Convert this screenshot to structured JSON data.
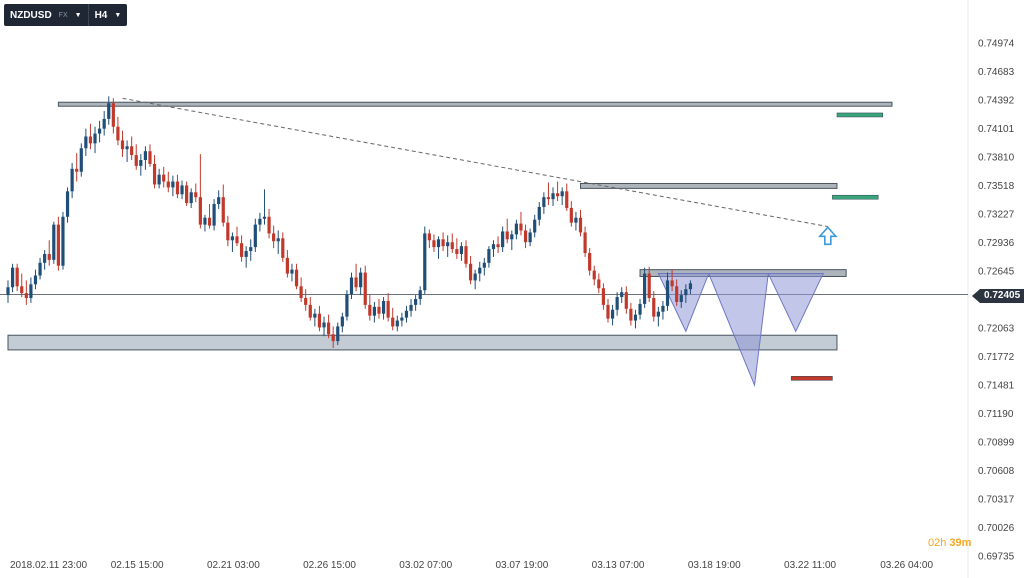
{
  "toolbar": {
    "symbol": "NZDUSD",
    "market": "FX",
    "timeframe": "H4"
  },
  "timer": {
    "hours": "02h",
    "minutes": "39m"
  },
  "current_price": "0.72405",
  "chart_data": {
    "type": "candlestick",
    "title": "",
    "xlabel": "",
    "ylabel": "",
    "ylim": [
      0.69735,
      0.75265
    ],
    "y_ticks": [
      "0.74974",
      "0.74683",
      "0.74392",
      "0.74101",
      "0.73810",
      "0.73518",
      "0.73227",
      "0.72936",
      "0.72645",
      "0.72063",
      "0.71772",
      "0.71481",
      "0.71190",
      "0.70899",
      "0.70608",
      "0.70317",
      "0.70026",
      "0.69735"
    ],
    "x_ticks": [
      {
        "label": "2018.02.11  23:00",
        "i": 0
      },
      {
        "label": "02.15  15:00",
        "i": 22
      },
      {
        "label": "02.21  03:00",
        "i": 43
      },
      {
        "label": "02.26  15:00",
        "i": 64
      },
      {
        "label": "03.02  07:00",
        "i": 85
      },
      {
        "label": "03.07  19:00",
        "i": 106
      },
      {
        "label": "03.13  07:00",
        "i": 127
      },
      {
        "label": "03.18  19:00",
        "i": 148
      },
      {
        "label": "03.22  11:00",
        "i": 169
      },
      {
        "label": "03.26  04:00",
        "i": 190
      }
    ],
    "colors": {
      "up": "#1f4e79",
      "down": "#c0392b",
      "support": "#b8c2cc",
      "pattern": "#8f98d6",
      "target_green": "#3aa57a",
      "stop_red": "#c0392b",
      "arrow": "#3a9ad9"
    },
    "levels": [
      {
        "name": "resistance-top",
        "from": 0.7437,
        "to": 0.7433,
        "i0": 11,
        "i1": 193
      },
      {
        "name": "resistance-mid",
        "from": 0.7354,
        "to": 0.7349,
        "i0": 125,
        "i1": 181
      },
      {
        "name": "neckline",
        "from": 0.7266,
        "to": 0.7259,
        "i0": 138,
        "i1": 183
      },
      {
        "name": "support-zone",
        "from": 0.7199,
        "to": 0.7184,
        "i0": 0,
        "i1": 181
      }
    ],
    "current_price_value": 0.72405,
    "trendline": [
      {
        "i": 25,
        "p": 0.7441
      },
      {
        "i": 179,
        "p": 0.731
      }
    ],
    "targets": [
      {
        "kind": "take-profit-1",
        "price": 0.7424,
        "i0": 181,
        "i1": 191
      },
      {
        "kind": "take-profit-2",
        "price": 0.734,
        "i0": 180,
        "i1": 190
      },
      {
        "kind": "stop-loss",
        "price": 0.7155,
        "i0": 171,
        "i1": 180
      }
    ],
    "pattern": [
      [
        {
          "i": 142,
          "p": 0.7262
        },
        {
          "i": 148,
          "p": 0.7203
        },
        {
          "i": 153,
          "p": 0.7262
        }
      ],
      [
        {
          "i": 153,
          "p": 0.7262
        },
        {
          "i": 163,
          "p": 0.7148
        },
        {
          "i": 166,
          "p": 0.7262
        }
      ],
      [
        {
          "i": 166,
          "p": 0.7262
        },
        {
          "i": 172,
          "p": 0.7203
        },
        {
          "i": 178,
          "p": 0.7262
        }
      ]
    ],
    "arrow": {
      "i": 179,
      "p": 0.73
    },
    "ohlc": [
      [
        0.724,
        0.7255,
        0.7232,
        0.7248
      ],
      [
        0.7248,
        0.7272,
        0.7243,
        0.7268
      ],
      [
        0.7268,
        0.7272,
        0.7244,
        0.7249
      ],
      [
        0.7249,
        0.7262,
        0.7238,
        0.7242
      ],
      [
        0.7242,
        0.7255,
        0.723,
        0.7237
      ],
      [
        0.7237,
        0.7258,
        0.7232,
        0.7251
      ],
      [
        0.7251,
        0.7266,
        0.7246,
        0.726
      ],
      [
        0.726,
        0.7278,
        0.7256,
        0.7273
      ],
      [
        0.7273,
        0.7286,
        0.7266,
        0.7282
      ],
      [
        0.7282,
        0.7296,
        0.727,
        0.7276
      ],
      [
        0.7276,
        0.7315,
        0.7272,
        0.7312
      ],
      [
        0.7312,
        0.732,
        0.7265,
        0.727
      ],
      [
        0.727,
        0.7325,
        0.7266,
        0.732
      ],
      [
        0.732,
        0.735,
        0.7314,
        0.7346
      ],
      [
        0.7346,
        0.7375,
        0.7339,
        0.7369
      ],
      [
        0.7369,
        0.7385,
        0.7356,
        0.7366
      ],
      [
        0.7366,
        0.7395,
        0.7361,
        0.739
      ],
      [
        0.739,
        0.741,
        0.7382,
        0.7402
      ],
      [
        0.7402,
        0.7415,
        0.7389,
        0.7395
      ],
      [
        0.7395,
        0.7412,
        0.7385,
        0.7405
      ],
      [
        0.7405,
        0.7418,
        0.7396,
        0.741
      ],
      [
        0.741,
        0.7428,
        0.7403,
        0.742
      ],
      [
        0.742,
        0.7443,
        0.7414,
        0.7436
      ],
      [
        0.7436,
        0.7441,
        0.7405,
        0.7412
      ],
      [
        0.7412,
        0.7422,
        0.7393,
        0.7398
      ],
      [
        0.7398,
        0.7408,
        0.7381,
        0.7389
      ],
      [
        0.7389,
        0.7398,
        0.7376,
        0.7392
      ],
      [
        0.7392,
        0.7402,
        0.7378,
        0.7383
      ],
      [
        0.7383,
        0.7394,
        0.7368,
        0.7372
      ],
      [
        0.7372,
        0.7384,
        0.7362,
        0.7378
      ],
      [
        0.7378,
        0.7392,
        0.7368,
        0.7387
      ],
      [
        0.7387,
        0.7394,
        0.7371,
        0.7374
      ],
      [
        0.7374,
        0.7383,
        0.7349,
        0.7353
      ],
      [
        0.7353,
        0.7369,
        0.7349,
        0.7363
      ],
      [
        0.7363,
        0.7371,
        0.735,
        0.7356
      ],
      [
        0.7356,
        0.7366,
        0.7345,
        0.735
      ],
      [
        0.735,
        0.7362,
        0.7341,
        0.7356
      ],
      [
        0.7356,
        0.7363,
        0.7339,
        0.7343
      ],
      [
        0.7343,
        0.7357,
        0.7338,
        0.7352
      ],
      [
        0.7352,
        0.7356,
        0.7331,
        0.7334
      ],
      [
        0.7334,
        0.7349,
        0.7329,
        0.7345
      ],
      [
        0.7345,
        0.7354,
        0.7335,
        0.734
      ],
      [
        0.734,
        0.7384,
        0.7308,
        0.7312
      ],
      [
        0.7312,
        0.7322,
        0.7305,
        0.7319
      ],
      [
        0.7319,
        0.7333,
        0.7308,
        0.7311
      ],
      [
        0.7311,
        0.7338,
        0.7306,
        0.7333
      ],
      [
        0.7333,
        0.7347,
        0.7328,
        0.734
      ],
      [
        0.734,
        0.7353,
        0.731,
        0.7314
      ],
      [
        0.7314,
        0.7321,
        0.729,
        0.7296
      ],
      [
        0.7296,
        0.7304,
        0.7284,
        0.73
      ],
      [
        0.73,
        0.731,
        0.729,
        0.7293
      ],
      [
        0.7293,
        0.7301,
        0.7274,
        0.7279
      ],
      [
        0.7279,
        0.729,
        0.7268,
        0.7285
      ],
      [
        0.7285,
        0.7297,
        0.7275,
        0.7289
      ],
      [
        0.7289,
        0.7318,
        0.7284,
        0.7312
      ],
      [
        0.7312,
        0.7324,
        0.7305,
        0.7318
      ],
      [
        0.7318,
        0.7348,
        0.7312,
        0.732
      ],
      [
        0.732,
        0.7328,
        0.7298,
        0.7303
      ],
      [
        0.7303,
        0.7311,
        0.7288,
        0.7295
      ],
      [
        0.7295,
        0.7306,
        0.7282,
        0.7298
      ],
      [
        0.7298,
        0.7304,
        0.7274,
        0.7278
      ],
      [
        0.7278,
        0.7286,
        0.7258,
        0.7262
      ],
      [
        0.7262,
        0.7272,
        0.7254,
        0.7266
      ],
      [
        0.7266,
        0.7272,
        0.7246,
        0.7249
      ],
      [
        0.7249,
        0.7258,
        0.7233,
        0.7237
      ],
      [
        0.7237,
        0.7246,
        0.7224,
        0.723
      ],
      [
        0.723,
        0.7238,
        0.7214,
        0.7217
      ],
      [
        0.7217,
        0.7226,
        0.7208,
        0.7221
      ],
      [
        0.7221,
        0.7229,
        0.7203,
        0.7207
      ],
      [
        0.7207,
        0.7218,
        0.7198,
        0.7212
      ],
      [
        0.7212,
        0.722,
        0.7196,
        0.72
      ],
      [
        0.72,
        0.7208,
        0.7186,
        0.7193
      ],
      [
        0.7193,
        0.7212,
        0.7189,
        0.7208
      ],
      [
        0.7208,
        0.7222,
        0.7202,
        0.7218
      ],
      [
        0.7218,
        0.7245,
        0.7214,
        0.7241
      ],
      [
        0.7241,
        0.7263,
        0.7236,
        0.7258
      ],
      [
        0.7258,
        0.7272,
        0.7244,
        0.7248
      ],
      [
        0.7248,
        0.7268,
        0.724,
        0.7263
      ],
      [
        0.7263,
        0.727,
        0.7226,
        0.723
      ],
      [
        0.723,
        0.724,
        0.7214,
        0.7219
      ],
      [
        0.7219,
        0.7233,
        0.7212,
        0.7228
      ],
      [
        0.7228,
        0.7236,
        0.7216,
        0.7221
      ],
      [
        0.7221,
        0.7238,
        0.7215,
        0.7234
      ],
      [
        0.7234,
        0.7242,
        0.7213,
        0.7217
      ],
      [
        0.7217,
        0.7227,
        0.7204,
        0.7208
      ],
      [
        0.7208,
        0.7219,
        0.7203,
        0.7214
      ],
      [
        0.7214,
        0.7222,
        0.7208,
        0.7217
      ],
      [
        0.7217,
        0.7229,
        0.7212,
        0.7224
      ],
      [
        0.7224,
        0.7236,
        0.7218,
        0.723
      ],
      [
        0.723,
        0.724,
        0.7224,
        0.7236
      ],
      [
        0.7236,
        0.7249,
        0.723,
        0.7245
      ],
      [
        0.7245,
        0.731,
        0.7241,
        0.7303
      ],
      [
        0.7303,
        0.7307,
        0.7288,
        0.7296
      ],
      [
        0.7296,
        0.7302,
        0.7284,
        0.7289
      ],
      [
        0.7289,
        0.73,
        0.7277,
        0.7297
      ],
      [
        0.7297,
        0.7304,
        0.7285,
        0.729
      ],
      [
        0.729,
        0.7301,
        0.7279,
        0.7294
      ],
      [
        0.7294,
        0.7303,
        0.7283,
        0.7287
      ],
      [
        0.7287,
        0.7298,
        0.7277,
        0.7282
      ],
      [
        0.7282,
        0.7294,
        0.7275,
        0.729
      ],
      [
        0.729,
        0.7296,
        0.7268,
        0.7272
      ],
      [
        0.7272,
        0.728,
        0.7251,
        0.7255
      ],
      [
        0.7255,
        0.7266,
        0.7246,
        0.7262
      ],
      [
        0.7262,
        0.7274,
        0.7254,
        0.7268
      ],
      [
        0.7268,
        0.7278,
        0.726,
        0.7273
      ],
      [
        0.7273,
        0.729,
        0.7268,
        0.7287
      ],
      [
        0.7287,
        0.7296,
        0.7279,
        0.7292
      ],
      [
        0.7292,
        0.73,
        0.7283,
        0.7289
      ],
      [
        0.7289,
        0.731,
        0.7284,
        0.7305
      ],
      [
        0.7305,
        0.7318,
        0.7293,
        0.7297
      ],
      [
        0.7297,
        0.7306,
        0.7286,
        0.7302
      ],
      [
        0.7302,
        0.7317,
        0.7297,
        0.7313
      ],
      [
        0.7313,
        0.7325,
        0.7301,
        0.7306
      ],
      [
        0.7306,
        0.7312,
        0.7288,
        0.7294
      ],
      [
        0.7294,
        0.7308,
        0.729,
        0.7304
      ],
      [
        0.7304,
        0.7322,
        0.7299,
        0.7317
      ],
      [
        0.7317,
        0.7335,
        0.7311,
        0.733
      ],
      [
        0.733,
        0.7345,
        0.7323,
        0.734
      ],
      [
        0.734,
        0.7355,
        0.7332,
        0.7338
      ],
      [
        0.7338,
        0.735,
        0.7331,
        0.7344
      ],
      [
        0.7344,
        0.7356,
        0.7336,
        0.7341
      ],
      [
        0.7341,
        0.735,
        0.7332,
        0.7346
      ],
      [
        0.7346,
        0.7354,
        0.7326,
        0.7329
      ],
      [
        0.7329,
        0.7336,
        0.731,
        0.7314
      ],
      [
        0.7314,
        0.7325,
        0.7306,
        0.7319
      ],
      [
        0.7319,
        0.7327,
        0.73,
        0.7304
      ],
      [
        0.7304,
        0.731,
        0.7279,
        0.7283
      ],
      [
        0.7283,
        0.7288,
        0.726,
        0.7265
      ],
      [
        0.7265,
        0.727,
        0.725,
        0.7256
      ],
      [
        0.7256,
        0.7262,
        0.7242,
        0.7247
      ],
      [
        0.7247,
        0.7252,
        0.7225,
        0.723
      ],
      [
        0.723,
        0.7236,
        0.7212,
        0.7216
      ],
      [
        0.7216,
        0.723,
        0.7209,
        0.7225
      ],
      [
        0.7225,
        0.7243,
        0.7219,
        0.7238
      ],
      [
        0.7238,
        0.7248,
        0.7232,
        0.7243
      ],
      [
        0.7243,
        0.7249,
        0.7221,
        0.7226
      ],
      [
        0.7226,
        0.7232,
        0.7209,
        0.7214
      ],
      [
        0.7214,
        0.7225,
        0.7206,
        0.722
      ],
      [
        0.722,
        0.7236,
        0.7215,
        0.7231
      ],
      [
        0.7231,
        0.7268,
        0.7227,
        0.7262
      ],
      [
        0.7262,
        0.7269,
        0.7233,
        0.7237
      ],
      [
        0.7237,
        0.7244,
        0.7213,
        0.7218
      ],
      [
        0.7218,
        0.7228,
        0.7208,
        0.7223
      ],
      [
        0.7223,
        0.7234,
        0.7215,
        0.7229
      ],
      [
        0.7229,
        0.7263,
        0.7224,
        0.7255
      ],
      [
        0.7255,
        0.7266,
        0.7244,
        0.7249
      ],
      [
        0.7249,
        0.7256,
        0.7229,
        0.7233
      ],
      [
        0.7233,
        0.7245,
        0.7227,
        0.724
      ],
      [
        0.724,
        0.7251,
        0.7232,
        0.7246
      ],
      [
        0.7246,
        0.7255,
        0.7241,
        0.7252
      ]
    ]
  }
}
